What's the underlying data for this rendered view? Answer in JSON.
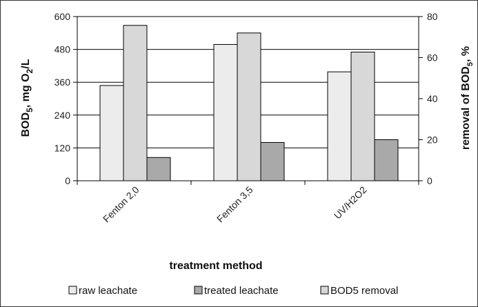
{
  "chart_data": {
    "type": "bar",
    "categories": [
      "Fenton 2,0",
      "Fenton 3,5",
      "UV/H2O2"
    ],
    "series": [
      {
        "name": "raw leachate",
        "axis": "left",
        "values": [
          348,
          498,
          398
        ],
        "color": "#ececec"
      },
      {
        "name": "BOD5 removal",
        "axis": "right",
        "values": [
          75.7,
          72,
          62.7
        ],
        "color": "#d8d8d8"
      },
      {
        "name": "treated leachate",
        "axis": "left",
        "values": [
          85,
          140,
          150
        ],
        "color": "#a9a9a9"
      }
    ],
    "legend_order": [
      0,
      2,
      1
    ],
    "xlabel": "treatment method",
    "ylabel_left": {
      "main": "BOD",
      "sub1": "5",
      "mid": ", mg O",
      "sub2": "2",
      "end": "/L"
    },
    "ylabel_right": {
      "main": "removal of BOD",
      "sub": "5",
      "end": ", %"
    },
    "ylim_left": [
      0,
      600
    ],
    "yticks_left": [
      0,
      120,
      240,
      360,
      480,
      600
    ],
    "ylim_right": [
      0,
      80
    ],
    "yticks_right": [
      0,
      20,
      40,
      60,
      80
    ],
    "grid": true,
    "legend_position": "bottom"
  }
}
